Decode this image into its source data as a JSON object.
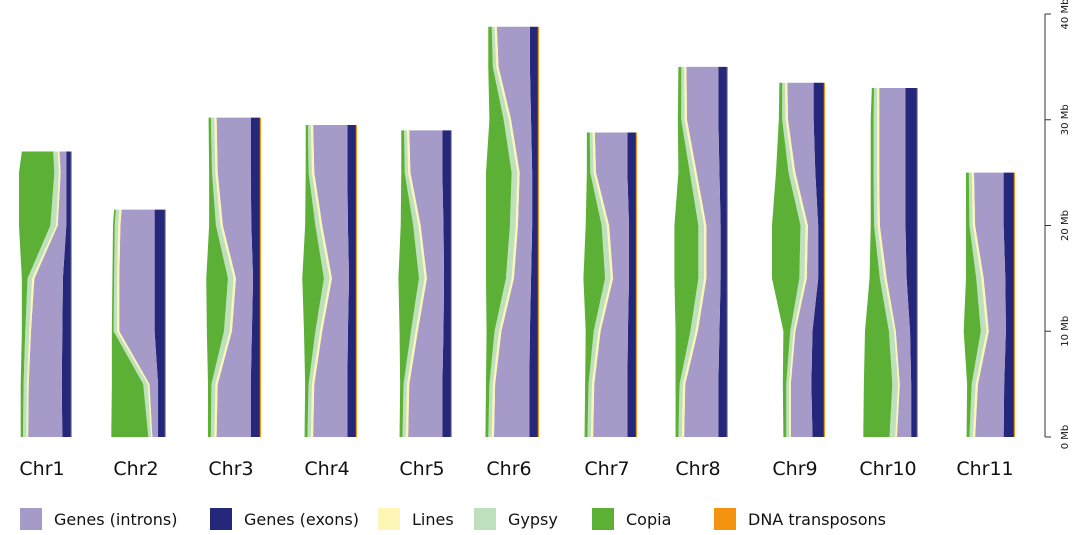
{
  "chart_data": {
    "type": "chromosome_area",
    "ylim": [
      0,
      40
    ],
    "yticks": [
      {
        "value": 0,
        "label": "0 Mb"
      },
      {
        "value": 10,
        "label": "10 Mb"
      },
      {
        "value": 20,
        "label": "20 Mb"
      },
      {
        "value": 30,
        "label": "30 Mb"
      },
      {
        "value": 40,
        "label": "40 Mb"
      }
    ],
    "series": [
      {
        "name": "Genes (introns)",
        "color": "#a69bc8"
      },
      {
        "name": "Genes (exons)",
        "color": "#25287a"
      },
      {
        "name": "Lines",
        "color": "#fdf6b4"
      },
      {
        "name": "Gypsy",
        "color": "#bfe0bd"
      },
      {
        "name": "Copia",
        "color": "#5bb035"
      },
      {
        "name": "DNA transposons",
        "color": "#f3930f"
      }
    ],
    "stack_order": [
      5,
      1,
      0,
      2,
      3,
      4
    ],
    "chromosomes": [
      {
        "name": "Chr1",
        "positions": [
          0,
          5,
          10,
          15,
          20,
          25,
          27
        ],
        "values": [
          [
            60,
            15,
            3,
            6,
            4,
            2
          ],
          [
            58,
            16,
            3,
            6,
            5,
            2
          ],
          [
            55,
            15,
            3,
            7,
            6,
            2
          ],
          [
            50,
            14,
            4,
            8,
            10,
            2
          ],
          [
            15,
            8,
            3,
            10,
            55,
            2
          ],
          [
            10,
            8,
            3,
            8,
            62,
            2
          ],
          [
            12,
            8,
            3,
            8,
            55,
            2
          ]
        ]
      },
      {
        "name": "Chr2",
        "positions": [
          0,
          5,
          10,
          15,
          20,
          21.5
        ],
        "values": [
          [
            10,
            12,
            2,
            5,
            65,
            2
          ],
          [
            15,
            12,
            3,
            8,
            55,
            2
          ],
          [
            62,
            18,
            4,
            6,
            3,
            2
          ],
          [
            62,
            18,
            4,
            5,
            3,
            2
          ],
          [
            60,
            18,
            4,
            6,
            3,
            2
          ],
          [
            58,
            18,
            4,
            6,
            3,
            2
          ]
        ]
      },
      {
        "name": "Chr3",
        "positions": [
          0,
          5,
          10,
          15,
          20,
          25,
          30.2
        ],
        "values": [
          [
            60,
            16,
            4,
            6,
            5,
            2
          ],
          [
            58,
            16,
            4,
            7,
            6,
            2
          ],
          [
            35,
            14,
            4,
            10,
            30,
            2
          ],
          [
            30,
            12,
            4,
            10,
            38,
            2
          ],
          [
            50,
            15,
            4,
            8,
            12,
            2
          ],
          [
            58,
            16,
            4,
            6,
            5,
            2
          ],
          [
            60,
            16,
            4,
            6,
            4,
            2
          ]
        ]
      },
      {
        "name": "Chr4",
        "positions": [
          0,
          5,
          10,
          15,
          20,
          25,
          29.5
        ],
        "values": [
          [
            60,
            15,
            4,
            6,
            5,
            2
          ],
          [
            58,
            15,
            4,
            6,
            6,
            2
          ],
          [
            45,
            14,
            4,
            8,
            20,
            2
          ],
          [
            30,
            12,
            4,
            10,
            38,
            2
          ],
          [
            45,
            14,
            4,
            8,
            18,
            2
          ],
          [
            58,
            15,
            4,
            6,
            5,
            2
          ],
          [
            60,
            15,
            4,
            5,
            4,
            2
          ]
        ]
      },
      {
        "name": "Chr5",
        "positions": [
          0,
          5,
          10,
          15,
          20,
          25,
          29
        ],
        "values": [
          [
            60,
            15,
            4,
            6,
            5,
            2
          ],
          [
            58,
            15,
            4,
            6,
            6,
            2
          ],
          [
            45,
            13,
            4,
            8,
            20,
            2
          ],
          [
            30,
            12,
            4,
            10,
            36,
            2
          ],
          [
            40,
            13,
            4,
            9,
            22,
            2
          ],
          [
            56,
            15,
            4,
            6,
            6,
            2
          ],
          [
            58,
            15,
            4,
            5,
            5,
            2
          ]
        ]
      },
      {
        "name": "Chr6",
        "positions": [
          0,
          5,
          10,
          15,
          20,
          25,
          30,
          35,
          38.8
        ],
        "values": [
          [
            62,
            15,
            4,
            6,
            5,
            2
          ],
          [
            60,
            15,
            4,
            6,
            6,
            2
          ],
          [
            50,
            14,
            4,
            8,
            14,
            2
          ],
          [
            30,
            12,
            4,
            10,
            35,
            2
          ],
          [
            25,
            10,
            4,
            10,
            42,
            2
          ],
          [
            22,
            10,
            4,
            10,
            45,
            2
          ],
          [
            35,
            12,
            4,
            9,
            25,
            2
          ],
          [
            55,
            14,
            4,
            6,
            8,
            2
          ],
          [
            58,
            14,
            4,
            5,
            6,
            2
          ]
        ]
      },
      {
        "name": "Chr7",
        "positions": [
          0,
          5,
          10,
          15,
          20,
          25,
          28.8
        ],
        "values": [
          [
            60,
            15,
            4,
            6,
            5,
            2
          ],
          [
            58,
            15,
            4,
            6,
            6,
            2
          ],
          [
            48,
            14,
            4,
            8,
            14,
            2
          ],
          [
            28,
            12,
            4,
            10,
            38,
            2
          ],
          [
            35,
            12,
            4,
            9,
            28,
            2
          ],
          [
            55,
            15,
            4,
            6,
            6,
            2
          ],
          [
            57,
            15,
            4,
            5,
            5,
            2
          ]
        ]
      },
      {
        "name": "Chr8",
        "positions": [
          0,
          5,
          10,
          15,
          20,
          25,
          30,
          35
        ],
        "values": [
          [
            60,
            15,
            4,
            6,
            5,
            2
          ],
          [
            58,
            15,
            4,
            6,
            7,
            2
          ],
          [
            38,
            13,
            4,
            9,
            26,
            2
          ],
          [
            25,
            11,
            4,
            10,
            42,
            2
          ],
          [
            25,
            11,
            4,
            10,
            42,
            2
          ],
          [
            40,
            13,
            4,
            8,
            20,
            2
          ],
          [
            55,
            15,
            4,
            6,
            6,
            2
          ],
          [
            56,
            15,
            4,
            5,
            5,
            2
          ]
        ]
      },
      {
        "name": "Chr9",
        "positions": [
          0,
          5,
          10,
          15,
          20,
          25,
          30,
          33.5
        ],
        "values": [
          [
            38,
            20,
            3,
            5,
            5,
            2
          ],
          [
            36,
            22,
            3,
            5,
            6,
            2
          ],
          [
            30,
            20,
            3,
            6,
            12,
            2
          ],
          [
            20,
            10,
            4,
            9,
            48,
            2
          ],
          [
            18,
            10,
            4,
            9,
            50,
            2
          ],
          [
            35,
            15,
            4,
            8,
            22,
            2
          ],
          [
            45,
            18,
            4,
            6,
            6,
            2
          ],
          [
            46,
            18,
            4,
            5,
            5,
            2
          ]
        ]
      },
      {
        "name": "Chr10",
        "positions": [
          0,
          5,
          10,
          15,
          20,
          25,
          30,
          33
        ],
        "values": [
          [
            25,
            10,
            3,
            10,
            46,
            2
          ],
          [
            20,
            10,
            3,
            10,
            50,
            2
          ],
          [
            25,
            12,
            3,
            9,
            42,
            2
          ],
          [
            35,
            18,
            4,
            8,
            18,
            2
          ],
          [
            45,
            20,
            4,
            6,
            6,
            2
          ],
          [
            46,
            20,
            4,
            6,
            5,
            2
          ],
          [
            46,
            20,
            4,
            6,
            5,
            2
          ],
          [
            46,
            20,
            4,
            5,
            4,
            2
          ]
        ]
      },
      {
        "name": "Chr11",
        "positions": [
          0,
          5,
          10,
          15,
          20,
          25
        ],
        "values": [
          [
            50,
            18,
            4,
            6,
            5,
            2
          ],
          [
            46,
            17,
            4,
            7,
            8,
            2
          ],
          [
            30,
            14,
            4,
            10,
            30,
            2
          ],
          [
            38,
            15,
            4,
            9,
            18,
            2
          ],
          [
            50,
            18,
            4,
            6,
            6,
            2
          ],
          [
            52,
            18,
            4,
            5,
            5,
            2
          ]
        ]
      }
    ]
  }
}
